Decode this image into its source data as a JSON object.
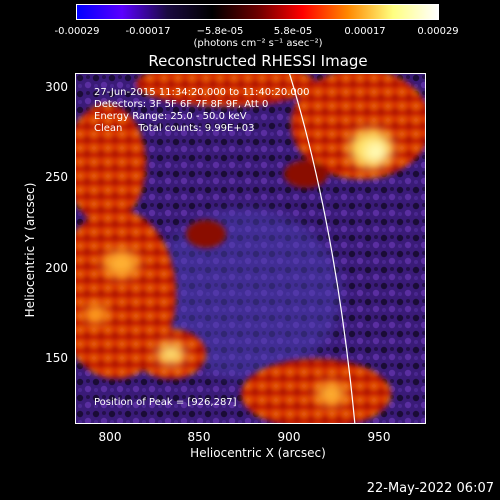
{
  "colorbar": {
    "ticks": [
      "-0.00029",
      "-0.00017",
      "−5.8e-05",
      "5.8e-05",
      "0.00017",
      "0.00029"
    ],
    "unit": "(photons cm⁻² s⁻¹ asec⁻²)",
    "colors": [
      "#0000ff",
      "#5a00ff",
      "#1a0a40",
      "#000000",
      "#6a0000",
      "#ff0000",
      "#ff8800",
      "#ffff80",
      "#ffffff"
    ]
  },
  "title": "Reconstructed RHESSI Image",
  "info": {
    "line1": "27-Jun-2015 11:34:20.000 to 11:40:20.000",
    "line2": "Detectors: 3F 5F 6F 7F 8F 9F, Att 0",
    "line3": "Energy Range: 25.0 - 50.0 keV",
    "line4": "Clean     Total counts: 9.99E+03",
    "peak": "Position of Peak = [926,287]"
  },
  "axes": {
    "xlabel": "Heliocentric X (arcsec)",
    "ylabel": "Heliocentric Y (arcsec)",
    "xticks": [
      "800",
      "850",
      "900",
      "950"
    ],
    "yticks": [
      "300",
      "250",
      "200",
      "150"
    ],
    "xlim": [
      783,
      977
    ],
    "ylim": [
      112,
      306
    ]
  },
  "timestamp": "22-May-2022 06:07"
}
